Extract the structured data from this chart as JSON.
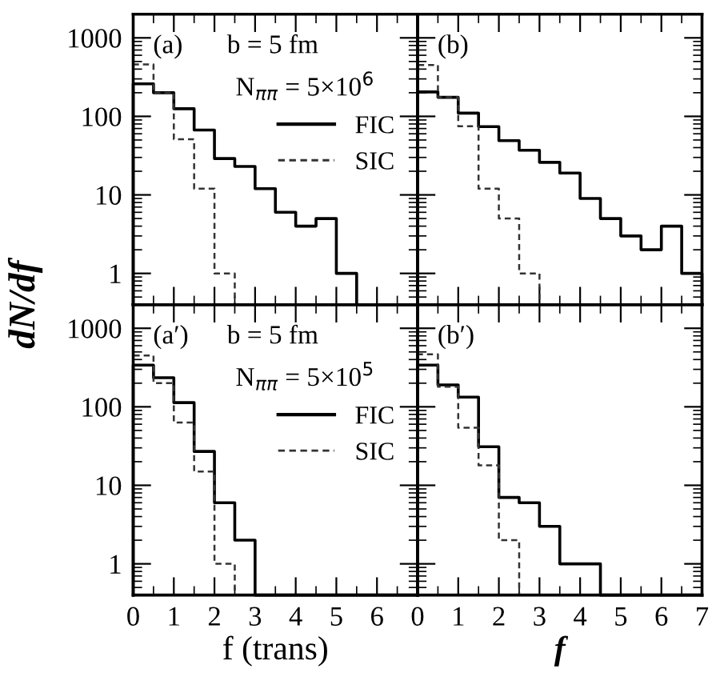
{
  "chart_data": [
    {
      "type": "histogram",
      "annotations": [
        "(a)",
        "b = 5 fm",
        "N$_{ππ}$ = 5×10$^{6}$"
      ],
      "ylabel": "dN/df",
      "bins": [
        0,
        0.5,
        1,
        1.5,
        2,
        2.5,
        3,
        3.5,
        4,
        4.5,
        5,
        5.5,
        6,
        6.5,
        7
      ],
      "series": [
        {
          "name": "FIC",
          "color": "#000000",
          "line_style": "solid",
          "values": [
            260,
            200,
            125,
            67,
            29,
            23,
            12,
            6,
            4,
            5,
            1,
            null,
            null,
            null
          ]
        },
        {
          "name": "SIC",
          "color": "#333333",
          "line_style": "dashed",
          "values": [
            460,
            200,
            51,
            12,
            1,
            null,
            null,
            null,
            null,
            null,
            null,
            null,
            null,
            null
          ]
        }
      ],
      "log": "y",
      "xlim": [
        0,
        7
      ],
      "ylim": [
        0.4,
        2000
      ],
      "yticks": [
        1,
        10,
        100,
        1000
      ],
      "xticks": [
        0,
        1,
        2,
        3,
        4,
        5,
        6,
        7
      ],
      "tick_labels": "y",
      "legend": "right",
      "grid": false
    },
    {
      "type": "histogram",
      "annotations": [
        "(b)"
      ],
      "bins": [
        0,
        0.5,
        1,
        1.5,
        2,
        2.5,
        3,
        3.5,
        4,
        4.5,
        5,
        5.5,
        6,
        6.5,
        7
      ],
      "series": [
        {
          "color": "#000000",
          "line_style": "solid",
          "values": [
            205,
            175,
            110,
            74,
            49,
            37,
            26,
            19,
            9,
            5,
            3,
            2,
            4,
            1
          ]
        },
        {
          "color": "#333333",
          "line_style": "dashed",
          "values": [
            450,
            175,
            75,
            12,
            5,
            1,
            null,
            null,
            null,
            null,
            null,
            null,
            null,
            null
          ]
        }
      ],
      "log": "y",
      "xlim": [
        0,
        7
      ],
      "ylim": [
        0.4,
        2000
      ],
      "yticks": [
        1,
        10,
        100,
        1000
      ],
      "xticks": [
        0,
        1,
        2,
        3,
        4,
        5,
        6,
        7
      ],
      "tick_labels": false,
      "grid": false
    },
    {
      "type": "histogram",
      "annotations": [
        "(a′)",
        "b = 5 fm",
        "N$_{ππ}$ = 5×10$^{5}$"
      ],
      "xlabel": "f (trans)",
      "bins": [
        0,
        0.5,
        1,
        1.5,
        2,
        2.5,
        3,
        3.5,
        4,
        4.5,
        5,
        5.5,
        6,
        6.5,
        7
      ],
      "series": [
        {
          "name": "FIC",
          "color": "#000000",
          "line_style": "solid",
          "values": [
            340,
            235,
            113,
            27,
            6,
            2,
            null,
            null,
            null,
            null,
            null,
            null,
            null,
            null
          ]
        },
        {
          "name": "SIC",
          "color": "#333333",
          "line_style": "dashed",
          "values": [
            450,
            200,
            63,
            15,
            1,
            null,
            null,
            null,
            null,
            null,
            null,
            null,
            null,
            null
          ]
        }
      ],
      "log": "y",
      "xlim": [
        0,
        7
      ],
      "ylim": [
        0.4,
        2000
      ],
      "yticks": [
        1,
        10,
        100,
        1000
      ],
      "xticks": [
        0,
        1,
        2,
        3,
        4,
        5,
        6,
        {
          "value": 7,
          "label": null
        }
      ],
      "legend": "right",
      "grid": false
    },
    {
      "type": "histogram",
      "annotations": [
        "(b′)"
      ],
      "xlabel": "f",
      "bins": [
        0,
        0.5,
        1,
        1.5,
        2,
        2.5,
        3,
        3.5,
        4,
        4.5,
        5,
        5.5,
        6,
        6.5,
        7
      ],
      "series": [
        {
          "color": "#000000",
          "line_style": "solid",
          "values": [
            340,
            190,
            133,
            31,
            7,
            6,
            3,
            1,
            1,
            null,
            null,
            null,
            null,
            null
          ]
        },
        {
          "color": "#333333",
          "line_style": "dashed",
          "values": [
            465,
            180,
            54,
            18,
            2,
            null,
            null,
            null,
            null,
            null,
            null,
            null,
            null,
            null
          ]
        }
      ],
      "log": "y",
      "xlim": [
        0,
        7
      ],
      "ylim": [
        0.4,
        2000
      ],
      "yticks": [
        1,
        10,
        100,
        1000
      ],
      "xticks": [
        0,
        1,
        2,
        3,
        4,
        5,
        6,
        7
      ],
      "tick_labels": "x",
      "grid": false
    }
  ]
}
